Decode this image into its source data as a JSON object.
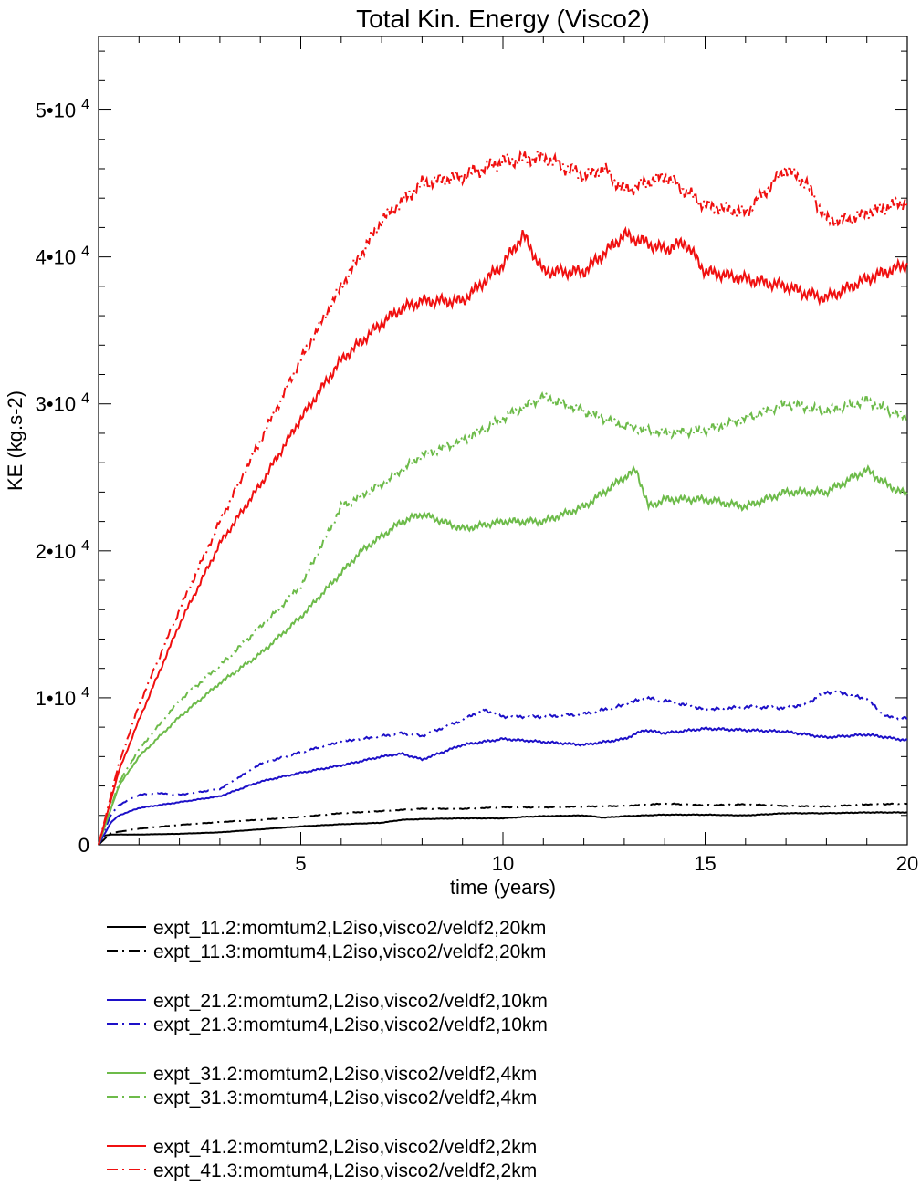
{
  "chart_data": {
    "type": "line",
    "title": "Total Kin. Energy (Visco2)",
    "xlabel": "time (years)",
    "ylabel": "KE (kg.s-2)",
    "xlim": [
      0,
      20
    ],
    "ylim": [
      0,
      55000
    ],
    "grid": false,
    "legend_position": "below",
    "x_ticks": [
      5,
      10,
      15,
      20
    ],
    "x_tick_labels": [
      "5",
      "10",
      "15",
      "20"
    ],
    "y_ticks": [
      0,
      10000,
      20000,
      30000,
      40000,
      50000
    ],
    "y_tick_labels": [
      {
        "mantissa": "0",
        "exp": ""
      },
      {
        "mantissa": "1•10",
        "exp": "4"
      },
      {
        "mantissa": "2•10",
        "exp": "4"
      },
      {
        "mantissa": "3•10",
        "exp": "4"
      },
      {
        "mantissa": "4•10",
        "exp": "4"
      },
      {
        "mantissa": "5•10",
        "exp": "4"
      }
    ],
    "series": [
      {
        "name": "expt_11.2:momtum2,L2iso,visco2/veldf2,20km",
        "color": "#000000",
        "dash": "solid",
        "x": [
          0,
          0.1,
          0.3,
          0.5,
          1,
          2,
          3,
          4,
          5,
          6,
          7,
          7.5,
          8,
          9,
          10,
          10.5,
          11,
          12,
          12.5,
          13,
          13.5,
          14,
          15,
          16,
          17,
          18,
          19,
          20
        ],
        "y": [
          0,
          600,
          700,
          700,
          700,
          750,
          850,
          1050,
          1250,
          1400,
          1500,
          1700,
          1750,
          1800,
          1800,
          1900,
          1950,
          2000,
          1850,
          1950,
          2000,
          2050,
          2050,
          2000,
          2150,
          2150,
          2200,
          2200
        ]
      },
      {
        "name": "expt_11.3:momtum4,L2iso,visco2/veldf2,20km",
        "color": "#000000",
        "dash": "dashdot",
        "x": [
          0,
          0.3,
          1,
          2,
          3,
          4,
          5,
          6,
          7,
          8,
          9,
          10,
          11,
          12,
          13,
          14,
          15,
          16,
          17,
          18,
          19,
          20
        ],
        "y": [
          0,
          800,
          1100,
          1350,
          1550,
          1700,
          1900,
          2150,
          2300,
          2450,
          2450,
          2550,
          2550,
          2600,
          2650,
          2800,
          2700,
          2750,
          2650,
          2600,
          2750,
          2800
        ]
      },
      {
        "name": "expt_21.2:momtum2,L2iso,visco2/veldf2,10km",
        "color": "#1d10c8",
        "dash": "solid",
        "x": [
          0,
          0.3,
          0.5,
          1,
          2,
          3,
          4,
          5,
          6,
          7,
          7.5,
          8,
          9,
          10,
          11,
          12,
          13,
          13.5,
          14,
          15,
          16,
          17,
          18,
          19,
          20
        ],
        "y": [
          0,
          1500,
          2000,
          2500,
          2900,
          3300,
          4300,
          4900,
          5400,
          6000,
          6200,
          5800,
          6800,
          7200,
          7000,
          6800,
          7200,
          7800,
          7600,
          7900,
          7800,
          7700,
          7300,
          7500,
          7100
        ]
      },
      {
        "name": "expt_21.3:momtum4,L2iso,visco2/veldf2,10km",
        "color": "#1d10c8",
        "dash": "dashdot",
        "x": [
          0,
          0.3,
          0.5,
          1,
          1.5,
          2,
          3,
          4,
          5,
          6,
          7,
          7.5,
          8,
          9,
          9.5,
          10,
          11,
          12,
          13,
          13.5,
          14,
          15,
          16,
          17,
          17.5,
          18,
          18.5,
          19,
          19.5,
          20
        ],
        "y": [
          0,
          2000,
          2700,
          3400,
          3500,
          3400,
          3800,
          5500,
          6300,
          7000,
          7400,
          7600,
          7400,
          8500,
          9200,
          8700,
          8700,
          8900,
          9500,
          10000,
          9800,
          9200,
          9400,
          9300,
          9600,
          10400,
          10300,
          9900,
          8700,
          8600
        ]
      },
      {
        "name": "expt_31.2:momtum2,L2iso,visco2/veldf2,4km",
        "color": "#6dbb4a",
        "dash": "solid",
        "x": [
          0,
          0.5,
          1,
          2,
          3,
          4,
          5,
          6,
          6.5,
          7,
          7.5,
          8,
          9,
          10,
          11,
          12,
          13,
          13.3,
          13.6,
          14,
          15,
          16,
          17,
          18,
          19,
          19.5,
          20
        ],
        "y": [
          0,
          4000,
          6000,
          8700,
          11000,
          13000,
          15500,
          18500,
          20000,
          21000,
          22000,
          22500,
          21500,
          22000,
          22000,
          23000,
          25000,
          25500,
          23000,
          23500,
          23500,
          23000,
          24000,
          24000,
          25500,
          24500,
          23800
        ]
      },
      {
        "name": "expt_31.3:momtum4,L2iso,visco2/veldf2,4km",
        "color": "#6dbb4a",
        "dash": "dashdot",
        "x": [
          0,
          0.5,
          1,
          2,
          3,
          4,
          5,
          6,
          7,
          8,
          9,
          10,
          11,
          12,
          13,
          14,
          15,
          16,
          17,
          18,
          19,
          20
        ],
        "y": [
          0,
          4200,
          6500,
          9800,
          12200,
          14800,
          17600,
          23000,
          24500,
          26500,
          27500,
          29000,
          30500,
          29500,
          28500,
          28000,
          28200,
          29000,
          30000,
          29500,
          30200,
          29000
        ]
      },
      {
        "name": "expt_41.2:momtum2,L2iso,visco2/veldf2,2km",
        "color": "#f01010",
        "dash": "solid",
        "x": [
          0,
          0.5,
          1,
          2,
          3,
          4,
          5,
          6,
          7,
          7.5,
          8,
          9,
          10,
          10.5,
          11,
          12,
          13,
          13.5,
          14,
          14.5,
          15,
          16,
          17,
          17.5,
          18,
          19,
          20
        ],
        "y": [
          0,
          5000,
          8500,
          15000,
          20500,
          24500,
          29000,
          33000,
          35500,
          36500,
          37000,
          37000,
          39500,
          41500,
          39000,
          39000,
          41500,
          41000,
          40500,
          41000,
          39000,
          38500,
          38000,
          37500,
          37200,
          38500,
          39500
        ]
      },
      {
        "name": "expt_41.3:momtum4,L2iso,visco2/veldf2,2km",
        "color": "#f01010",
        "dash": "dashdot",
        "x": [
          0,
          0.5,
          1,
          2,
          3,
          4,
          5,
          6,
          7,
          8,
          9,
          10,
          11,
          12,
          12.5,
          13,
          14,
          15,
          16,
          16.5,
          17,
          17.5,
          18,
          18.5,
          19,
          20
        ],
        "y": [
          0,
          5500,
          9500,
          16000,
          22000,
          27500,
          33000,
          38000,
          42500,
          45000,
          45500,
          46500,
          46800,
          45500,
          46000,
          44500,
          45500,
          43500,
          43000,
          44500,
          46000,
          45000,
          42500,
          42500,
          43000,
          43800
        ]
      }
    ]
  }
}
